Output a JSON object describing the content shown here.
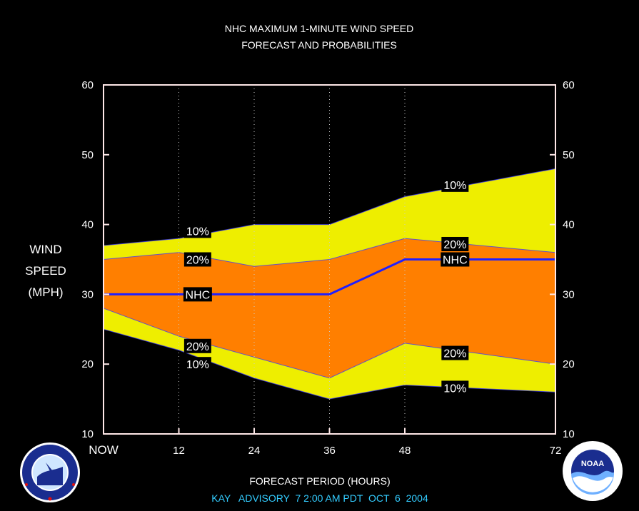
{
  "chart_data": {
    "type": "area",
    "title": "NHC MAXIMUM 1-MINUTE WIND SPEED",
    "subtitle": "FORECAST AND PROBABILITIES",
    "ylabel_lines": [
      "WIND",
      "SPEED",
      "(MPH)"
    ],
    "xlabel": "FORECAST PERIOD (HOURS)",
    "advisory": "KAY   ADVISORY  7 2:00 AM PDT  OCT  6  2004",
    "xlim": [
      0,
      72
    ],
    "ylim": [
      10,
      60
    ],
    "x_ticks": [
      0,
      12,
      24,
      36,
      48,
      72
    ],
    "x_tick_labels": [
      "NOW",
      "12",
      "24",
      "36",
      "48",
      "72"
    ],
    "y_ticks": [
      10,
      20,
      30,
      40,
      50,
      60
    ],
    "y_tick_labels": [
      "10",
      "20",
      "30",
      "40",
      "50",
      "60"
    ],
    "dotted_gridlines_x": [
      12,
      24,
      36,
      48
    ],
    "x": [
      0,
      12,
      24,
      36,
      48,
      60,
      72
    ],
    "series": [
      {
        "name": "10%",
        "values": [
          37,
          38,
          40,
          40,
          44,
          46,
          48
        ]
      },
      {
        "name": "20%",
        "values": [
          35,
          36,
          34,
          35,
          38,
          37,
          36
        ]
      },
      {
        "name": "NHC",
        "values": [
          30,
          30,
          30,
          30,
          35,
          35,
          35
        ]
      },
      {
        "name": "20%",
        "values": [
          28,
          24,
          21,
          18,
          23,
          21.5,
          20
        ]
      },
      {
        "name": "10%",
        "values": [
          25,
          22,
          18,
          15,
          17,
          16.5,
          16
        ]
      }
    ],
    "annotations": [
      {
        "text": "10%",
        "x": 15,
        "y": 39.1
      },
      {
        "text": "20%",
        "x": 15,
        "y": 35.0
      },
      {
        "text": "NHC",
        "x": 15,
        "y": 30.0
      },
      {
        "text": "20%",
        "x": 15,
        "y": 22.6
      },
      {
        "text": "10%",
        "x": 15,
        "y": 20.0
      },
      {
        "text": "10%",
        "x": 56,
        "y": 45.7
      },
      {
        "text": "20%",
        "x": 56,
        "y": 37.2
      },
      {
        "text": "NHC",
        "x": 56,
        "y": 35.0
      },
      {
        "text": "20%",
        "x": 56,
        "y": 21.6
      },
      {
        "text": "10%",
        "x": 56,
        "y": 16.6
      }
    ],
    "colors": {
      "outer_band": "#EEEE00",
      "inner_band": "#FF7F00",
      "nhc_line": "#1F1FFF",
      "frame": "#FFE8E8",
      "advisory_text": "#33CCFF",
      "background": "#000000"
    },
    "logos": {
      "left": {
        "icon": "nws-logo-icon",
        "text": "NATIONAL WEATHER SERVICE"
      },
      "right": {
        "icon": "noaa-logo-icon",
        "text": "NOAA",
        "ring_text": "NATIONAL OCEANIC AND ATMOSPHERIC ADMINISTRATION · U.S. DEPARTMENT OF COMMERCE"
      }
    }
  }
}
